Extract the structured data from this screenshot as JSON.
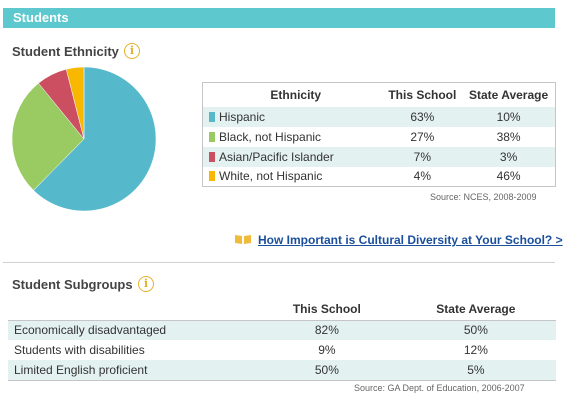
{
  "header": {
    "title": "Students"
  },
  "ethnicity": {
    "title": "Student Ethnicity",
    "info_icon": "i",
    "columns": [
      "Ethnicity",
      "This School",
      "State Average"
    ],
    "source": "Source: NCES, 2008-2009"
  },
  "link": {
    "text": "How Important is Cultural Diversity at Your School? >",
    "icon": "book-icon"
  },
  "subgroups": {
    "title": "Student Subgroups",
    "info_icon": "i",
    "columns": [
      "",
      "This School",
      "State Average"
    ],
    "source": "Source: GA Dept. of Education, 2006-2007"
  },
  "chart_data": [
    {
      "type": "pie",
      "categories": [
        "Hispanic",
        "Black, not Hispanic",
        "Asian/Pacific Islander",
        "White, not Hispanic"
      ],
      "values": [
        63,
        27,
        7,
        4
      ],
      "colors": [
        "#55b9cb",
        "#9acb63",
        "#cc4f61",
        "#f8b800"
      ]
    },
    {
      "type": "table",
      "rows": [
        {
          "label": "Hispanic",
          "this_school": "63%",
          "state_average": "10%",
          "color": "#55b9cb"
        },
        {
          "label": "Black, not Hispanic",
          "this_school": "27%",
          "state_average": "38%",
          "color": "#9acb63"
        },
        {
          "label": "Asian/Pacific Islander",
          "this_school": "7%",
          "state_average": "3%",
          "color": "#cc4f61"
        },
        {
          "label": "White, not Hispanic",
          "this_school": "4%",
          "state_average": "46%",
          "color": "#f8b800"
        }
      ]
    },
    {
      "type": "table",
      "rows": [
        {
          "label": "Economically disadvantaged",
          "this_school": "82%",
          "state_average": "50%"
        },
        {
          "label": "Students with disabilities",
          "this_school": "9%",
          "state_average": "12%"
        },
        {
          "label": "Limited English proficient",
          "this_school": "50%",
          "state_average": "5%"
        }
      ]
    }
  ]
}
